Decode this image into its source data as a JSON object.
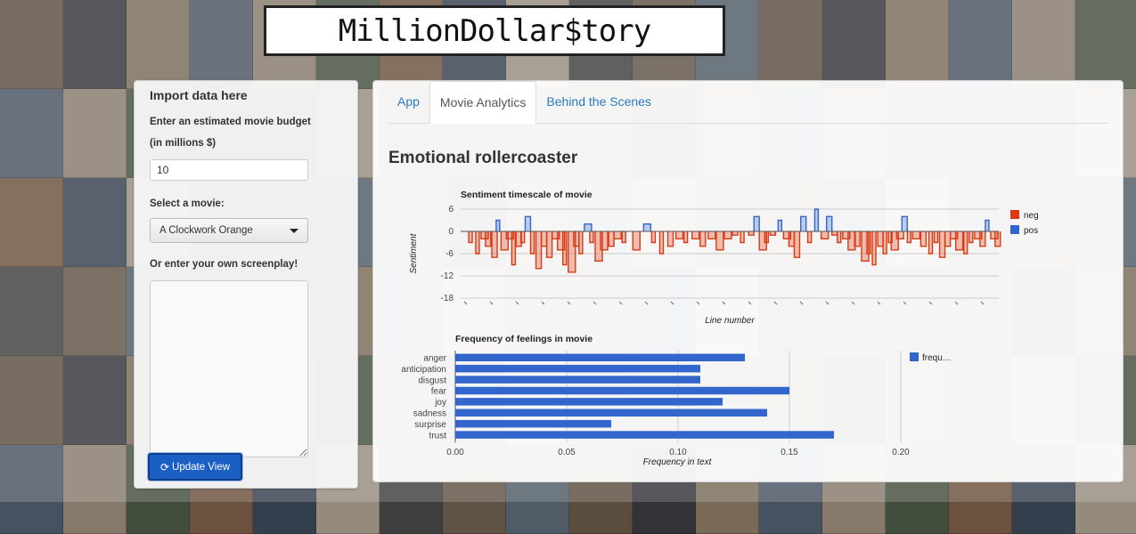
{
  "header": {
    "title": "MillionDollar$tory"
  },
  "sidebar": {
    "heading": "Import data here",
    "budget_label_1": "Enter an estimated movie budget",
    "budget_label_2": "(in millions $)",
    "budget_value": "10",
    "select_label": "Select a movie:",
    "selected_movie": "A Clockwork Orange",
    "screenplay_label": "Or enter your own screenplay!",
    "screenplay_value": "",
    "update_button": "Update View"
  },
  "tabs": [
    {
      "label": "App",
      "active": false
    },
    {
      "label": "Movie Analytics",
      "active": true
    },
    {
      "label": "Behind the Scenes",
      "active": false
    }
  ],
  "main": {
    "section_title": "Emotional rollercoaster"
  },
  "colors": {
    "neg": "#dc3912",
    "pos": "#3366cc",
    "bar": "#3366cc",
    "link": "#2a7ac0",
    "button": "#1b5fc4"
  },
  "chart_data": [
    {
      "type": "area",
      "title": "Sentiment timescale of movie",
      "xlabel": "Line number",
      "ylabel": "Sentiment",
      "ylim": [
        -18,
        6
      ],
      "yticks": [
        "6",
        "0",
        "-6",
        "-12",
        "-18"
      ],
      "series": [
        {
          "name": "neg",
          "description": "negative sentiment per line, mostly between 0 and -7, dips to about -12"
        },
        {
          "name": "pos",
          "description": "positive sentiment per line, mostly 0 to 4, peak about 6"
        }
      ],
      "legend_position": "right",
      "events": [
        [
          0.015,
          -3
        ],
        [
          0.028,
          -6
        ],
        [
          0.038,
          -2
        ],
        [
          0.046,
          -4
        ],
        [
          0.058,
          -7
        ],
        [
          0.066,
          3
        ],
        [
          0.075,
          -5
        ],
        [
          0.085,
          -2
        ],
        [
          0.095,
          -9
        ],
        [
          0.103,
          -4
        ],
        [
          0.112,
          -3
        ],
        [
          0.12,
          4
        ],
        [
          0.13,
          -6
        ],
        [
          0.14,
          -10
        ],
        [
          0.15,
          -4
        ],
        [
          0.16,
          -7
        ],
        [
          0.17,
          -2
        ],
        [
          0.18,
          -5
        ],
        [
          0.19,
          -9
        ],
        [
          0.2,
          -11
        ],
        [
          0.21,
          -4
        ],
        [
          0.22,
          -6
        ],
        [
          0.23,
          2
        ],
        [
          0.24,
          -3
        ],
        [
          0.25,
          -8
        ],
        [
          0.26,
          -5
        ],
        [
          0.275,
          -4
        ],
        [
          0.285,
          -2
        ],
        [
          0.3,
          -3
        ],
        [
          0.32,
          -5
        ],
        [
          0.34,
          2
        ],
        [
          0.355,
          -3
        ],
        [
          0.37,
          -6
        ],
        [
          0.385,
          -4
        ],
        [
          0.4,
          -2
        ],
        [
          0.415,
          -3
        ],
        [
          0.43,
          -2
        ],
        [
          0.445,
          -4
        ],
        [
          0.46,
          -2
        ],
        [
          0.475,
          -5
        ],
        [
          0.49,
          -2
        ],
        [
          0.505,
          -1
        ],
        [
          0.52,
          -3
        ],
        [
          0.535,
          -1
        ],
        [
          0.545,
          4
        ],
        [
          0.555,
          -5
        ],
        [
          0.565,
          -3
        ],
        [
          0.575,
          -1
        ],
        [
          0.59,
          3
        ],
        [
          0.6,
          -2
        ],
        [
          0.61,
          -4
        ],
        [
          0.62,
          -7
        ],
        [
          0.632,
          4
        ],
        [
          0.645,
          -3
        ],
        [
          0.658,
          6
        ],
        [
          0.67,
          -2
        ],
        [
          0.68,
          4
        ],
        [
          0.69,
          -1
        ],
        [
          0.7,
          -3
        ],
        [
          0.71,
          -2
        ],
        [
          0.72,
          -5
        ],
        [
          0.732,
          -4
        ],
        [
          0.745,
          -8
        ],
        [
          0.755,
          -6
        ],
        [
          0.765,
          -9
        ],
        [
          0.775,
          -4
        ],
        [
          0.785,
          -6
        ],
        [
          0.795,
          -3
        ],
        [
          0.8,
          -5
        ],
        [
          0.81,
          -2
        ],
        [
          0.82,
          4
        ],
        [
          0.83,
          -3
        ],
        [
          0.84,
          -2
        ],
        [
          0.855,
          -4
        ],
        [
          0.87,
          -6
        ],
        [
          0.88,
          -3
        ],
        [
          0.89,
          -7
        ],
        [
          0.9,
          -4
        ],
        [
          0.91,
          -2
        ],
        [
          0.92,
          -5
        ],
        [
          0.935,
          -6
        ],
        [
          0.945,
          -3
        ],
        [
          0.955,
          -2
        ],
        [
          0.965,
          -4
        ],
        [
          0.975,
          3
        ],
        [
          0.985,
          -2
        ],
        [
          0.993,
          -4
        ]
      ]
    },
    {
      "type": "bar",
      "orientation": "horizontal",
      "title": "Frequency of feelings in movie",
      "xlabel": "Frequency in text",
      "ylabel": "",
      "xlim": [
        0,
        0.2
      ],
      "xticks": [
        "0.00",
        "0.05",
        "0.10",
        "0.15",
        "0.20"
      ],
      "categories": [
        "anger",
        "anticipation",
        "disgust",
        "fear",
        "joy",
        "sadness",
        "surprise",
        "trust"
      ],
      "series": [
        {
          "name": "frequ…",
          "values": [
            0.13,
            0.11,
            0.11,
            0.15,
            0.12,
            0.14,
            0.07,
            0.17
          ]
        }
      ],
      "legend_position": "right"
    }
  ]
}
